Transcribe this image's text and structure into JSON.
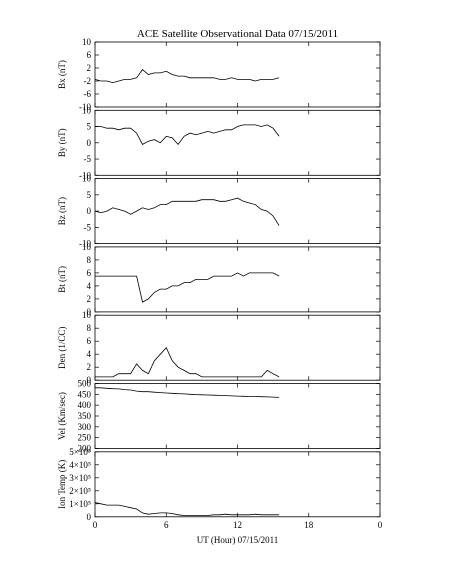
{
  "chart_data": [
    {
      "type": "line",
      "title": "ACE Satellite Observational Data   07/15/2011",
      "ylabel": "Bx (nT)",
      "color": "#000000",
      "xlim": [
        0,
        24
      ],
      "xticks": [
        0,
        6,
        12,
        18,
        24
      ],
      "ylim": [
        -10,
        10
      ],
      "yticks": [
        -10,
        -6,
        -2,
        2,
        6,
        10
      ],
      "x": [
        0,
        0.5,
        1,
        1.5,
        2,
        2.5,
        3,
        3.5,
        4,
        4.5,
        5,
        5.5,
        6,
        6.5,
        7,
        7.5,
        8,
        8.5,
        9,
        9.5,
        10,
        10.5,
        11,
        11.5,
        12,
        12.5,
        13,
        13.5,
        14,
        14.5,
        15,
        15.5
      ],
      "values": [
        -1.5,
        -2,
        -2,
        -2.5,
        -2,
        -1.5,
        -1.5,
        -1,
        1.5,
        0,
        0.5,
        0.5,
        1,
        0,
        -0.5,
        -0.5,
        -1,
        -1,
        -1,
        -1,
        -1,
        -1.5,
        -1.5,
        -1,
        -1.5,
        -1.5,
        -1.5,
        -2,
        -1.5,
        -1.5,
        -1.5,
        -1
      ]
    },
    {
      "type": "line",
      "ylabel": "By (nT)",
      "color": "#000000",
      "xlim": [
        0,
        24
      ],
      "xticks": [
        0,
        6,
        12,
        18,
        24
      ],
      "ylim": [
        -10,
        10
      ],
      "yticks": [
        -10,
        -5,
        0,
        5,
        10
      ],
      "x": [
        0,
        0.5,
        1,
        1.5,
        2,
        2.5,
        3,
        3.5,
        4,
        4.5,
        5,
        5.5,
        6,
        6.5,
        7,
        7.5,
        8,
        8.5,
        9,
        9.5,
        10,
        10.5,
        11,
        11.5,
        12,
        12.5,
        13,
        13.5,
        14,
        14.5,
        15,
        15.5
      ],
      "values": [
        5,
        5,
        4.5,
        4.5,
        4,
        4.5,
        4.5,
        3,
        -0.5,
        0.5,
        1,
        0,
        2,
        1.5,
        -0.5,
        2,
        3,
        2.5,
        3,
        3.5,
        3,
        3.5,
        4,
        4,
        5,
        5.5,
        5.5,
        5.5,
        5,
        5.5,
        4.5,
        2
      ]
    },
    {
      "type": "line",
      "ylabel": "Bz (nT)",
      "color": "#000000",
      "xlim": [
        0,
        24
      ],
      "xticks": [
        0,
        6,
        12,
        18,
        24
      ],
      "ylim": [
        -10,
        10
      ],
      "yticks": [
        -10,
        -5,
        0,
        5,
        10
      ],
      "x": [
        0,
        0.5,
        1,
        1.5,
        2,
        2.5,
        3,
        3.5,
        4,
        4.5,
        5,
        5.5,
        6,
        6.5,
        7,
        7.5,
        8,
        8.5,
        9,
        9.5,
        10,
        10.5,
        11,
        11.5,
        12,
        12.5,
        13,
        13.5,
        14,
        14.5,
        15,
        15.5
      ],
      "values": [
        0,
        -0.5,
        0,
        1,
        0.5,
        0,
        -1,
        0,
        1,
        0.5,
        1,
        2,
        2,
        3,
        3,
        3,
        3,
        3,
        3.5,
        3.5,
        3.5,
        3,
        3,
        3.5,
        4,
        3,
        2.5,
        2,
        0.5,
        0,
        -1.5,
        -4.5
      ]
    },
    {
      "type": "line",
      "ylabel": "Bt (nT)",
      "color": "#000000",
      "xlim": [
        0,
        24
      ],
      "xticks": [
        0,
        6,
        12,
        18,
        24
      ],
      "ylim": [
        0,
        10
      ],
      "yticks": [
        0,
        2,
        4,
        6,
        8,
        10
      ],
      "x": [
        0,
        0.5,
        1,
        1.5,
        2,
        2.5,
        3,
        3.5,
        4,
        4.5,
        5,
        5.5,
        6,
        6.5,
        7,
        7.5,
        8,
        8.5,
        9,
        9.5,
        10,
        10.5,
        11,
        11.5,
        12,
        12.5,
        13,
        13.5,
        14,
        14.5,
        15,
        15.5
      ],
      "values": [
        5.5,
        5.5,
        5.5,
        5.5,
        5.5,
        5.5,
        5.5,
        5.5,
        1.5,
        2,
        3,
        3.5,
        3.5,
        4,
        4,
        4.5,
        4.5,
        5,
        5,
        5,
        5.5,
        5.5,
        5.5,
        5.5,
        6,
        5.5,
        6,
        6,
        6,
        6,
        6,
        5.5
      ]
    },
    {
      "type": "line",
      "ylabel": "Den (1/CC)",
      "color": "#000000",
      "xlim": [
        0,
        24
      ],
      "xticks": [
        0,
        6,
        12,
        18,
        24
      ],
      "ylim": [
        0,
        10
      ],
      "yticks": [
        0,
        2,
        4,
        6,
        8,
        10
      ],
      "x": [
        0,
        0.5,
        1,
        1.5,
        2,
        2.5,
        3,
        3.5,
        4,
        4.5,
        5,
        5.5,
        6,
        6.5,
        7,
        7.5,
        8,
        8.5,
        9,
        9.5,
        10,
        10.5,
        11,
        11.5,
        12,
        12.5,
        13,
        13.5,
        14,
        14.5,
        15,
        15.5
      ],
      "values": [
        0.5,
        0.5,
        0.5,
        0.5,
        1,
        1,
        1,
        2.5,
        1.5,
        1,
        3,
        4,
        5,
        3,
        2,
        1.5,
        1,
        1,
        0.5,
        0.5,
        0.5,
        0.5,
        0.5,
        0.5,
        0.5,
        0.5,
        0.5,
        0.5,
        0.5,
        1.5,
        1,
        0.5
      ]
    },
    {
      "type": "line",
      "ylabel": "Vel (Km/sec)",
      "color": "#000000",
      "xlim": [
        0,
        24
      ],
      "xticks": [
        0,
        6,
        12,
        18,
        24
      ],
      "ylim": [
        200,
        500
      ],
      "yticks": [
        200,
        250,
        300,
        350,
        400,
        450,
        500
      ],
      "x": [
        0,
        0.5,
        1,
        1.5,
        2,
        2.5,
        3,
        3.5,
        4,
        4.5,
        5,
        5.5,
        6,
        6.5,
        7,
        7.5,
        8,
        8.5,
        9,
        9.5,
        10,
        10.5,
        11,
        11.5,
        12,
        12.5,
        13,
        13.5,
        14,
        14.5,
        15,
        15.5
      ],
      "values": [
        480,
        480,
        478,
        476,
        475,
        472,
        470,
        465,
        462,
        462,
        460,
        458,
        456,
        455,
        453,
        452,
        450,
        449,
        448,
        447,
        446,
        445,
        444,
        443,
        442,
        441,
        440,
        440,
        439,
        438,
        437,
        436
      ]
    },
    {
      "type": "line",
      "ylabel": "Ion Temp (K)",
      "xlabel": "UT (Hour)   07/15/2011",
      "color": "#000000",
      "xlim": [
        0,
        24
      ],
      "xticks": [
        0,
        6,
        12,
        18,
        {
          "value": 24,
          "label": "0"
        }
      ],
      "ylim": [
        0,
        500000
      ],
      "yticks": [
        0,
        {
          "value": 100000,
          "label": "1×10⁵"
        },
        {
          "value": 200000,
          "label": "2×10⁵"
        },
        {
          "value": 300000,
          "label": "3×10⁵"
        },
        {
          "value": 400000,
          "label": "4×10⁵"
        },
        {
          "value": 500000,
          "label": "5×10⁵"
        }
      ],
      "x": [
        0,
        0.5,
        1,
        1.5,
        2,
        2.5,
        3,
        3.5,
        4,
        4.5,
        5,
        5.5,
        6,
        6.5,
        7,
        7.5,
        8,
        8.5,
        9,
        9.5,
        10,
        10.5,
        11,
        11.5,
        12,
        12.5,
        13,
        13.5,
        14,
        14.5,
        15,
        15.5
      ],
      "values": [
        110000,
        100000,
        90000,
        90000,
        90000,
        80000,
        70000,
        60000,
        30000,
        20000,
        25000,
        30000,
        30000,
        25000,
        15000,
        10000,
        10000,
        10000,
        10000,
        10000,
        15000,
        15000,
        20000,
        15000,
        15000,
        15000,
        15000,
        20000,
        15000,
        15000,
        15000,
        15000
      ]
    }
  ]
}
